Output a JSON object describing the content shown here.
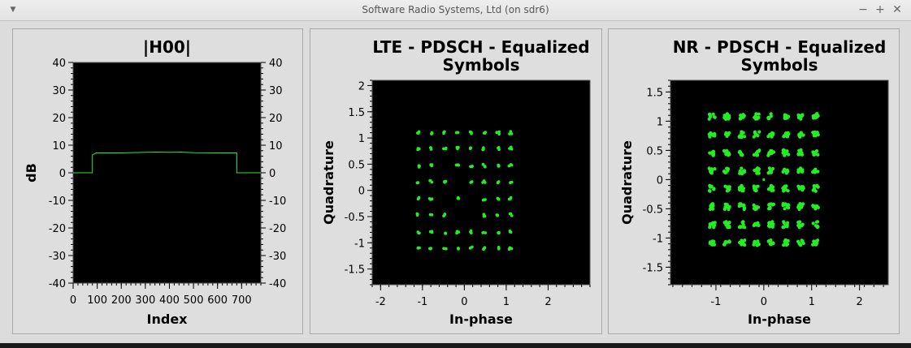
{
  "window": {
    "title": "Software Radio Systems, Ltd (on sdr6)",
    "menu_icon": "chevron-down-icon",
    "min_icon": "minimize-icon",
    "max_icon": "maximize-icon",
    "close_icon": "close-icon"
  },
  "colors": {
    "trace": "#22ee22",
    "plot_bg": "#000000",
    "panel_bg": "#dedede"
  },
  "chart_data": [
    {
      "type": "line",
      "title": "|H00|",
      "xlabel": "Index",
      "ylabel": "dB",
      "xlim": [
        0,
        780
      ],
      "ylim": [
        -40,
        40
      ],
      "xticks": [
        0,
        100,
        200,
        300,
        400,
        500,
        600,
        700
      ],
      "yticks": [
        40,
        30,
        20,
        10,
        0,
        -10,
        -20,
        -30,
        -40
      ],
      "series": [
        {
          "x": [
            0,
            80,
            80,
            95,
            200,
            300,
            350,
            400,
            450,
            500,
            600,
            680,
            680,
            780
          ],
          "y": [
            0,
            0,
            6.5,
            7.2,
            7.2,
            7.4,
            7.5,
            7.4,
            7.5,
            7.3,
            7.2,
            7.2,
            0,
            0
          ]
        }
      ],
      "grid": false
    },
    {
      "type": "scatter",
      "title": "LTE - PDSCH - Equalized Symbols",
      "xlabel": "In-phase",
      "ylabel": "Quadrature",
      "xlim": [
        -2.2,
        3
      ],
      "ylim": [
        -1.8,
        2.1
      ],
      "xticks": [
        -2,
        -1,
        0,
        1,
        2
      ],
      "yticks": [
        2,
        1.5,
        1,
        0.5,
        0,
        -0.5,
        -1,
        -1.5
      ],
      "constellation_levels": [
        -1.1,
        -0.8,
        -0.47,
        -0.16,
        0.16,
        0.47,
        0.8,
        1.1
      ],
      "missing_points": [
        [
          -0.47,
          -0.16
        ],
        [
          -0.16,
          0.16
        ],
        [
          0.16,
          -0.47
        ],
        [
          0.16,
          -0.16
        ],
        [
          -0.16,
          -0.47
        ],
        [
          -0.47,
          0.47
        ]
      ],
      "grid": false
    },
    {
      "type": "scatter",
      "title": "NR - PDSCH - Equalized Symbols",
      "xlabel": "In-phase",
      "ylabel": "Quadrature",
      "xlim": [
        -1.95,
        2.6
      ],
      "ylim": [
        -1.8,
        1.7
      ],
      "xticks": [
        -1,
        0,
        1,
        2
      ],
      "yticks": [
        1.5,
        1,
        0.5,
        0,
        -0.5,
        -1,
        -1.5
      ],
      "constellation_levels": [
        -1.08,
        -0.77,
        -0.46,
        -0.15,
        0.15,
        0.46,
        0.77,
        1.08
      ],
      "center_point": [
        0,
        0
      ],
      "grid": false
    }
  ]
}
